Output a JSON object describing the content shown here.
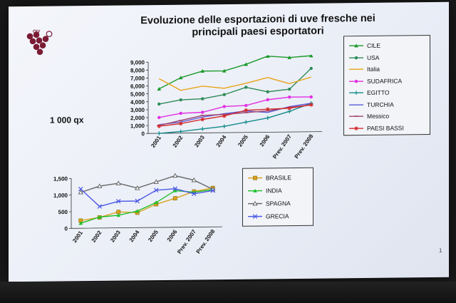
{
  "slide": {
    "title_line1": "Evoluzione delle esportazioni di uve fresche nei",
    "title_line2": "principali paesi esportatori",
    "unit_label": "1 000 qx",
    "logo_text": "OIV",
    "page_number": "1"
  },
  "chart_data": [
    {
      "type": "line",
      "categories": [
        "2001",
        "2002",
        "2003",
        "2004",
        "2005",
        "2006",
        "Prev. 2007",
        "Prev. 2008"
      ],
      "yticks": [
        "0",
        "1,000",
        "2,000",
        "3,000",
        "4,000",
        "5,000",
        "6,000",
        "7,000",
        "8,000",
        "9,000"
      ],
      "ylim": [
        0,
        9000
      ],
      "legend_position": "right",
      "series": [
        {
          "name": "CILE",
          "color": "#1a9a2a",
          "marker": "triangle",
          "values": [
            5600,
            7000,
            7800,
            7800,
            8600,
            9600,
            9400,
            9600
          ]
        },
        {
          "name": "USA",
          "color": "#2e8b57",
          "marker": "circle",
          "values": [
            3700,
            4200,
            4300,
            4800,
            5700,
            5100,
            5400,
            8000
          ]
        },
        {
          "name": "Italia",
          "color": "#e8a317",
          "marker": "none",
          "values": [
            6900,
            5400,
            5900,
            5600,
            6200,
            6900,
            6100,
            6900
          ]
        },
        {
          "name": "SUDAFRICA",
          "color": "#e22ee2",
          "marker": "circle",
          "values": [
            2000,
            2500,
            2600,
            3300,
            3400,
            4100,
            4400,
            4400
          ]
        },
        {
          "name": "EGITTO",
          "color": "#138b8b",
          "marker": "plus",
          "values": [
            0,
            200,
            500,
            800,
            1300,
            1800,
            2600,
            3600
          ]
        },
        {
          "name": "TURCHIA",
          "color": "#5a5ad6",
          "marker": "none",
          "values": [
            1100,
            1400,
            2000,
            2400,
            2700,
            2500,
            3200,
            3600
          ]
        },
        {
          "name": "Messico",
          "color": "#a0456e",
          "marker": "dash",
          "values": [
            1000,
            1600,
            2200,
            2300,
            2500,
            2700,
            3100,
            3400
          ]
        },
        {
          "name": "PAESI BASSI",
          "color": "#d42a2a",
          "marker": "star",
          "values": [
            900,
            1200,
            1700,
            2100,
            2800,
            2900,
            3000,
            3400
          ]
        }
      ]
    },
    {
      "type": "line",
      "categories": [
        "2001",
        "2002",
        "2003",
        "2004",
        "2005",
        "2006",
        "Prev. 2007",
        "Prev. 2008"
      ],
      "yticks": [
        "0",
        "500",
        "1,000",
        "1,500"
      ],
      "ylim": [
        0,
        1500
      ],
      "legend_position": "right",
      "series": [
        {
          "name": "BRASILE",
          "color": "#d9a21b",
          "marker": "square",
          "values": [
            230,
            320,
            480,
            450,
            700,
            870,
            1070,
            1170
          ]
        },
        {
          "name": "INDIA",
          "color": "#1fbf2a",
          "marker": "triangle",
          "values": [
            150,
            330,
            380,
            500,
            750,
            1100,
            1050,
            1120
          ]
        },
        {
          "name": "SPAGNA",
          "color": "#666666",
          "marker": "triangle-open",
          "values": [
            1080,
            1260,
            1340,
            1190,
            1370,
            1550,
            1410,
            1130
          ]
        },
        {
          "name": "GRECIA",
          "color": "#4a58e6",
          "marker": "x",
          "values": [
            1180,
            650,
            800,
            800,
            1120,
            1160,
            1000,
            1090
          ]
        }
      ]
    }
  ]
}
